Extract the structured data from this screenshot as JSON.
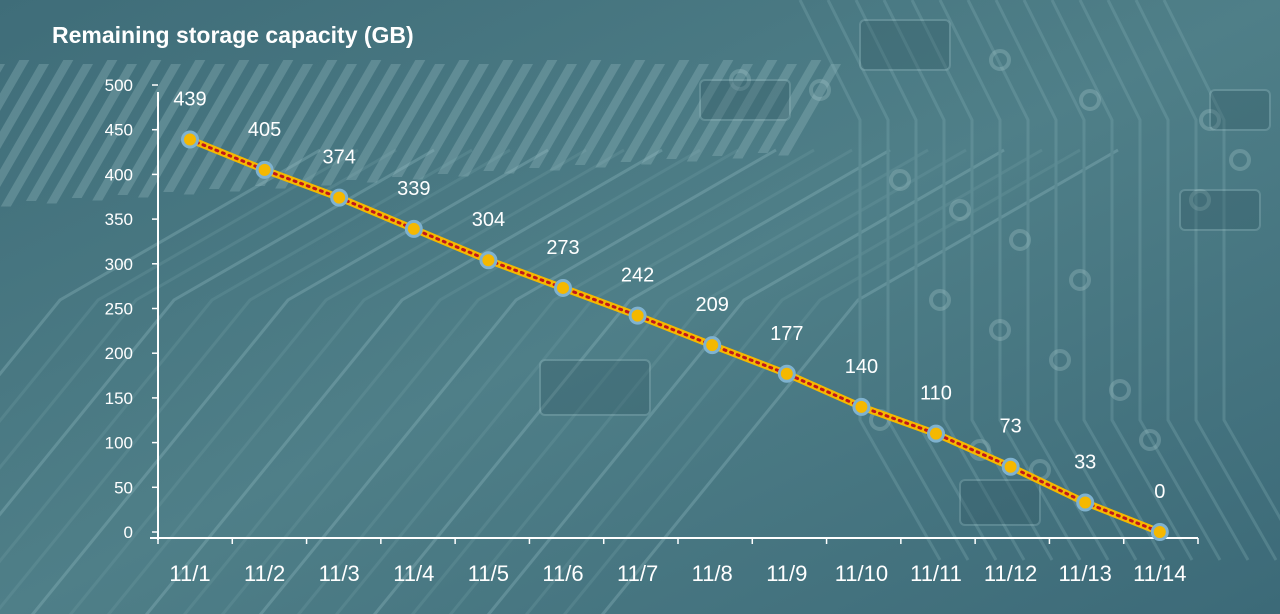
{
  "chart_data": {
    "type": "line",
    "title": "Remaining storage capacity (GB)",
    "categories": [
      "11/1",
      "11/2",
      "11/3",
      "11/4",
      "11/5",
      "11/6",
      "11/7",
      "11/8",
      "11/9",
      "11/10",
      "11/11",
      "11/12",
      "11/13",
      "11/14"
    ],
    "series": [
      {
        "values": [
          439,
          405,
          374,
          339,
          304,
          273,
          242,
          209,
          177,
          140,
          110,
          73,
          33,
          0
        ]
      }
    ],
    "ylim": [
      0,
      500
    ],
    "yticks": [
      0,
      50,
      100,
      150,
      200,
      250,
      300,
      350,
      400,
      450,
      500
    ],
    "xlabel": "",
    "ylabel": "",
    "grid": false,
    "colors": {
      "line": "#f5b800",
      "line_dots": "#c0151b",
      "marker_fill": "#f5b800",
      "marker_ring": "#7fb2cf",
      "text": "#ffffff",
      "axis": "#ffffff",
      "background": "#4f7c87"
    }
  }
}
